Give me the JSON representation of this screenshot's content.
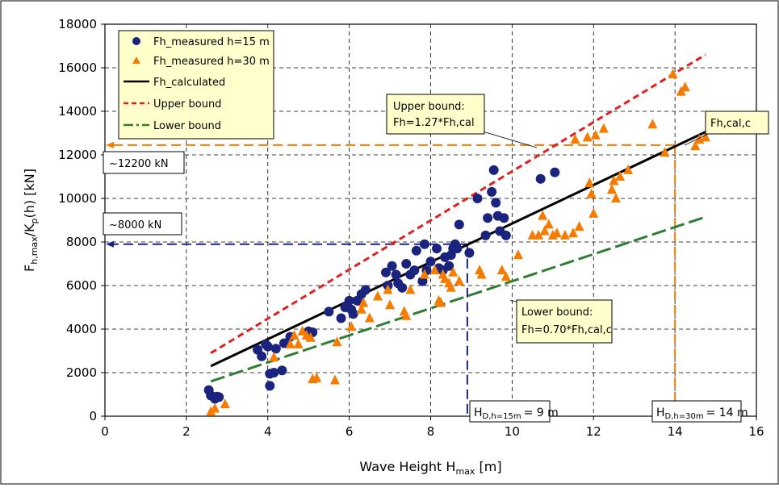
{
  "chart_data": {
    "type": "scatter",
    "xlabel": {
      "main": "Wave Height H",
      "sub": "max",
      "unit": " [m]"
    },
    "ylabel": {
      "p1": "F",
      "s1": "h,max",
      "p2": "/K",
      "s2": "p",
      "p3": "(h) [kN]"
    },
    "xlim": [
      0,
      16
    ],
    "ylim": [
      0,
      18000
    ],
    "x_ticks": [
      "0",
      "2",
      "4",
      "6",
      "8",
      "10",
      "12",
      "14",
      "16"
    ],
    "y_ticks": [
      "0",
      "2000",
      "4000",
      "6000",
      "8000",
      "10000",
      "12000",
      "14000",
      "16000",
      "18000"
    ],
    "grid": true,
    "legend_position": "top-left",
    "series": [
      {
        "name": "Fh_measured h=15 m",
        "marker": "circle",
        "color": "#1a237e",
        "points": [
          [
            2.55,
            1200
          ],
          [
            2.6,
            950
          ],
          [
            2.7,
            800
          ],
          [
            2.75,
            900
          ],
          [
            2.8,
            880
          ],
          [
            3.75,
            3050
          ],
          [
            3.85,
            2750
          ],
          [
            3.95,
            3300
          ],
          [
            4.0,
            3200
          ],
          [
            4.05,
            1400
          ],
          [
            4.05,
            1950
          ],
          [
            4.15,
            2000
          ],
          [
            4.2,
            3100
          ],
          [
            4.35,
            2100
          ],
          [
            4.4,
            3350
          ],
          [
            4.55,
            3650
          ],
          [
            5.0,
            3900
          ],
          [
            5.1,
            3850
          ],
          [
            5.5,
            4800
          ],
          [
            5.8,
            4500
          ],
          [
            5.9,
            5000
          ],
          [
            6.0,
            5300
          ],
          [
            6.05,
            4900
          ],
          [
            6.1,
            4700
          ],
          [
            6.2,
            5300
          ],
          [
            6.3,
            5600
          ],
          [
            6.4,
            5800
          ],
          [
            6.9,
            6600
          ],
          [
            6.95,
            6000
          ],
          [
            7.05,
            6900
          ],
          [
            7.15,
            6500
          ],
          [
            7.2,
            6100
          ],
          [
            7.3,
            5900
          ],
          [
            7.4,
            7000
          ],
          [
            7.5,
            6500
          ],
          [
            7.6,
            6700
          ],
          [
            7.65,
            7600
          ],
          [
            7.8,
            6200
          ],
          [
            7.85,
            7900
          ],
          [
            7.9,
            6700
          ],
          [
            8.0,
            7100
          ],
          [
            8.15,
            7700
          ],
          [
            8.2,
            6800
          ],
          [
            8.3,
            6700
          ],
          [
            8.35,
            7300
          ],
          [
            8.45,
            6900
          ],
          [
            8.5,
            7400
          ],
          [
            8.55,
            7700
          ],
          [
            8.6,
            7900
          ],
          [
            8.65,
            7700
          ],
          [
            8.7,
            8800
          ],
          [
            8.95,
            7500
          ],
          [
            9.15,
            10000
          ],
          [
            9.35,
            8300
          ],
          [
            9.4,
            9100
          ],
          [
            9.5,
            10300
          ],
          [
            9.55,
            11300
          ],
          [
            9.6,
            9800
          ],
          [
            9.65,
            9200
          ],
          [
            9.7,
            8500
          ],
          [
            9.8,
            9100
          ],
          [
            9.85,
            8300
          ],
          [
            10.7,
            10900
          ],
          [
            11.05,
            11200
          ]
        ]
      },
      {
        "name": "Fh_measured h=30 m",
        "marker": "triangle",
        "color": "#f57c00",
        "points": [
          [
            2.6,
            200
          ],
          [
            2.7,
            350
          ],
          [
            2.95,
            550
          ],
          [
            4.15,
            2700
          ],
          [
            4.55,
            3300
          ],
          [
            4.65,
            3700
          ],
          [
            4.75,
            3300
          ],
          [
            4.85,
            3900
          ],
          [
            4.95,
            3700
          ],
          [
            5.05,
            3600
          ],
          [
            5.1,
            1700
          ],
          [
            5.2,
            1750
          ],
          [
            5.65,
            1650
          ],
          [
            5.7,
            3400
          ],
          [
            6.05,
            4100
          ],
          [
            6.3,
            4900
          ],
          [
            6.35,
            5200
          ],
          [
            6.5,
            4500
          ],
          [
            6.7,
            5500
          ],
          [
            6.95,
            5800
          ],
          [
            7.0,
            5100
          ],
          [
            7.35,
            4800
          ],
          [
            7.4,
            4600
          ],
          [
            7.5,
            5800
          ],
          [
            7.85,
            6500
          ],
          [
            8.1,
            6700
          ],
          [
            8.2,
            5300
          ],
          [
            8.25,
            5200
          ],
          [
            8.3,
            6500
          ],
          [
            8.35,
            6300
          ],
          [
            8.45,
            6100
          ],
          [
            8.5,
            5900
          ],
          [
            8.55,
            6600
          ],
          [
            8.7,
            6200
          ],
          [
            9.2,
            6700
          ],
          [
            9.25,
            6500
          ],
          [
            9.75,
            6700
          ],
          [
            9.85,
            6400
          ],
          [
            10.15,
            7400
          ],
          [
            10.5,
            8300
          ],
          [
            10.65,
            8300
          ],
          [
            10.75,
            9200
          ],
          [
            10.8,
            8500
          ],
          [
            10.9,
            8800
          ],
          [
            11.0,
            8300
          ],
          [
            11.1,
            8400
          ],
          [
            11.3,
            8300
          ],
          [
            11.5,
            8400
          ],
          [
            11.55,
            12700
          ],
          [
            11.65,
            8700
          ],
          [
            11.85,
            12800
          ],
          [
            11.9,
            10700
          ],
          [
            11.95,
            10200
          ],
          [
            12.0,
            9300
          ],
          [
            12.05,
            12900
          ],
          [
            12.25,
            13200
          ],
          [
            12.45,
            10400
          ],
          [
            12.5,
            10800
          ],
          [
            12.55,
            10000
          ],
          [
            12.65,
            11000
          ],
          [
            12.85,
            11300
          ],
          [
            13.45,
            13400
          ],
          [
            13.75,
            12100
          ],
          [
            13.95,
            15700
          ],
          [
            14.15,
            14900
          ],
          [
            14.25,
            15100
          ],
          [
            14.5,
            12400
          ],
          [
            14.6,
            12700
          ],
          [
            14.75,
            12800
          ]
        ]
      },
      {
        "name": "Fh_calculated",
        "style": "solid",
        "color": "#000000",
        "line": [
          [
            2.6,
            2300
          ],
          [
            14.75,
            13050
          ]
        ]
      },
      {
        "name": "Upper bound",
        "style": "dashed",
        "color": "#e02020",
        "line": [
          [
            2.6,
            2900
          ],
          [
            14.75,
            16600
          ]
        ]
      },
      {
        "name": "Lower bound",
        "style": "dashed",
        "color": "#2e7d32",
        "line": [
          [
            2.6,
            1600
          ],
          [
            14.75,
            9150
          ]
        ]
      }
    ],
    "guides": {
      "h15": {
        "x": 8.9,
        "y": 7900
      },
      "h30": {
        "x": 14.0,
        "y": 12450
      }
    },
    "annotations": {
      "upper_bound": {
        "line1": "Upper bound:",
        "line2": "Fh=1.27*Fh,cal"
      },
      "fh_cal_c": "Fh,cal,c",
      "lower_bound": {
        "line1": "Lower bound:",
        "line2": "Fh=0.70*Fh,cal,c"
      },
      "y_12200": "~12200 kN",
      "y_8000": "~8000 kN",
      "hd15": {
        "pre": "H",
        "sub": "D,h=15m",
        "post": "= 9 m"
      },
      "hd30": {
        "pre": "H",
        "sub": "D,h=30m",
        "post": "= 14 m"
      }
    },
    "colors": {
      "callout_fill": "#ffffcc",
      "guide_blue": "#1a237e",
      "guide_orange": "#f57c00",
      "grid": "#000000"
    }
  }
}
